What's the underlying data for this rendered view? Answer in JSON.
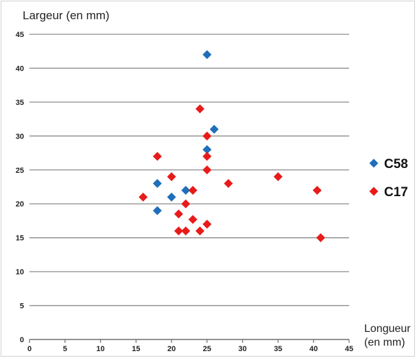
{
  "chart_data": {
    "type": "scatter",
    "title": "",
    "ylabel": "Largeur (en mm)",
    "xlabel_line1": "Longueur",
    "xlabel_line2": "(en mm)",
    "xlim": [
      0,
      45
    ],
    "ylim": [
      0,
      45
    ],
    "x_ticks": [
      0,
      5,
      10,
      15,
      20,
      25,
      30,
      35,
      40,
      45
    ],
    "y_ticks": [
      0,
      5,
      10,
      15,
      20,
      25,
      30,
      35,
      40,
      45
    ],
    "grid": "horizontal",
    "legend_position": "right",
    "series": [
      {
        "name": "C58",
        "color": "#1f6fba",
        "marker": "diamond",
        "points": [
          [
            25,
            42
          ],
          [
            26,
            31
          ],
          [
            25,
            28
          ],
          [
            18,
            23
          ],
          [
            22,
            22
          ],
          [
            20,
            21
          ],
          [
            18,
            19
          ]
        ]
      },
      {
        "name": "C17",
        "color": "#e81b1b",
        "marker": "diamond",
        "points": [
          [
            24,
            34
          ],
          [
            25,
            30
          ],
          [
            18,
            27
          ],
          [
            25,
            27
          ],
          [
            20,
            24
          ],
          [
            25,
            25
          ],
          [
            35,
            24
          ],
          [
            28,
            23
          ],
          [
            23,
            22
          ],
          [
            40.5,
            22
          ],
          [
            16,
            21
          ],
          [
            22,
            20
          ],
          [
            21,
            18.5
          ],
          [
            23,
            17.7
          ],
          [
            25,
            17
          ],
          [
            21,
            16
          ],
          [
            22,
            16
          ],
          [
            24,
            16
          ],
          [
            41,
            15
          ]
        ]
      }
    ]
  }
}
